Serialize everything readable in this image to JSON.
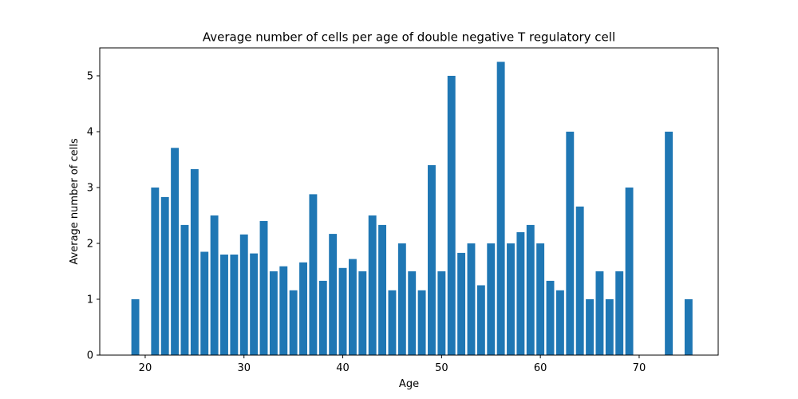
{
  "chart_data": {
    "type": "bar",
    "title": "Average number of cells per age of double negative T regulatory cell",
    "xlabel": "Age",
    "ylabel": "Average number of cells",
    "xlim": [
      15.4,
      78.0
    ],
    "ylim": [
      0,
      5.5
    ],
    "xticks": [
      20,
      30,
      40,
      50,
      60,
      70
    ],
    "yticks": [
      0,
      1,
      2,
      3,
      4,
      5
    ],
    "bar_width": 0.8,
    "color": "#1f77b4",
    "grid": false,
    "x": [
      19,
      21,
      22,
      23,
      24,
      25,
      26,
      27,
      28,
      29,
      30,
      31,
      32,
      33,
      34,
      35,
      36,
      37,
      38,
      39,
      40,
      41,
      42,
      43,
      44,
      45,
      46,
      47,
      48,
      49,
      50,
      51,
      52,
      53,
      54,
      55,
      56,
      57,
      58,
      59,
      60,
      61,
      62,
      63,
      64,
      65,
      66,
      67,
      68,
      69,
      73,
      75
    ],
    "values": [
      1.0,
      3.0,
      2.83,
      3.71,
      2.33,
      3.33,
      1.85,
      2.5,
      1.8,
      1.8,
      2.16,
      1.82,
      2.4,
      1.5,
      1.59,
      1.16,
      1.66,
      2.88,
      1.33,
      2.17,
      1.56,
      1.72,
      1.5,
      2.5,
      2.33,
      1.16,
      2.0,
      1.5,
      1.16,
      3.4,
      1.5,
      5.0,
      1.83,
      2.0,
      1.25,
      2.0,
      5.25,
      2.0,
      2.2,
      2.33,
      2.0,
      1.33,
      1.16,
      4.0,
      2.66,
      1.0,
      1.5,
      1.0,
      1.5,
      3.0,
      4.0,
      1.0
    ]
  }
}
